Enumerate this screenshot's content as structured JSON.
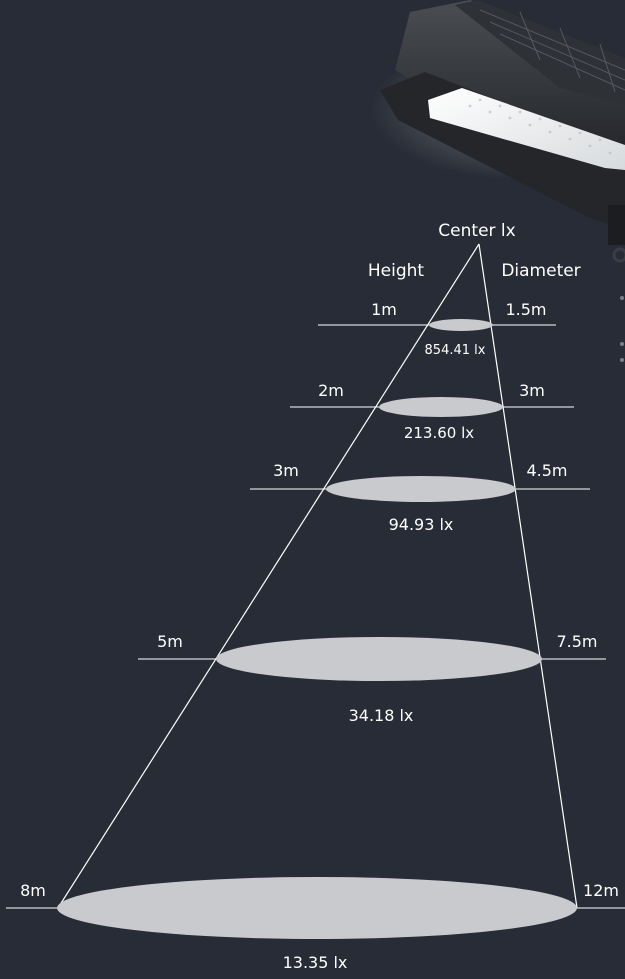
{
  "header": {
    "center_label": "Center lx",
    "height_label": "Height",
    "diameter_label": "Diameter"
  },
  "levels": [
    {
      "height": "1m",
      "diameter": "1.5m",
      "illuminance": "854.41 lx"
    },
    {
      "height": "2m",
      "diameter": "3m",
      "illuminance": "213.60 lx"
    },
    {
      "height": "3m",
      "diameter": "4.5m",
      "illuminance": "94.93 lx"
    },
    {
      "height": "5m",
      "diameter": "7.5m",
      "illuminance": "34.18 lx"
    },
    {
      "height": "8m",
      "diameter": "12m",
      "illuminance": "13.35 lx"
    }
  ],
  "colors": {
    "background": "#272c36",
    "beam_line": "#ffffff",
    "light_ellipse": "#c8cacd",
    "text": "#ffffff"
  },
  "icons": {
    "product": "street-light-fixture-icon"
  }
}
